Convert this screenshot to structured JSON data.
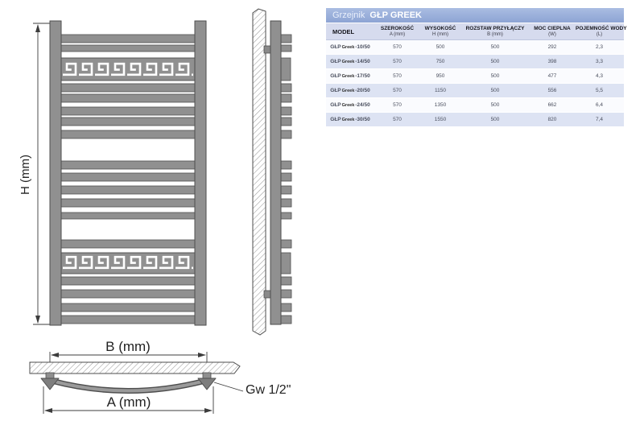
{
  "spec_table": {
    "title": {
      "prefix": "Grzejnik",
      "name": "GŁP GREEK"
    },
    "header": [
      {
        "label": "MODEL",
        "sub": ""
      },
      {
        "label": "SZEROKOŚĆ",
        "sub": "A (mm)"
      },
      {
        "label": "WYSOKOŚĆ",
        "sub": "H (mm)"
      },
      {
        "label": "ROZSTAW PRZYŁĄCZY",
        "sub": "B (mm)"
      },
      {
        "label": "MOC CIEPLNA",
        "sub": "(W)"
      },
      {
        "label": "POJEMNOŚĆ WODY",
        "sub": "(L)"
      }
    ],
    "rows": [
      {
        "model": {
          "brand": "GŁP",
          "series": "Greek",
          "size": "-10/50"
        },
        "values": [
          "570",
          "500",
          "500",
          "292",
          "2,3"
        ]
      },
      {
        "model": {
          "brand": "GŁP",
          "series": "Greek",
          "size": "-14/50"
        },
        "values": [
          "570",
          "750",
          "500",
          "398",
          "3,3"
        ]
      },
      {
        "model": {
          "brand": "GŁP",
          "series": "Greek",
          "size": "-17/50"
        },
        "values": [
          "570",
          "950",
          "500",
          "477",
          "4,3"
        ]
      },
      {
        "model": {
          "brand": "GŁP",
          "series": "Greek",
          "size": "-20/50"
        },
        "values": [
          "570",
          "1150",
          "500",
          "556",
          "5,5"
        ]
      },
      {
        "model": {
          "brand": "GŁP",
          "series": "Greek",
          "size": "-24/50"
        },
        "values": [
          "570",
          "1350",
          "500",
          "662",
          "6,4"
        ]
      },
      {
        "model": {
          "brand": "GŁP",
          "series": "Greek",
          "size": "-30/50"
        },
        "values": [
          "570",
          "1550",
          "500",
          "820",
          "7,4"
        ]
      }
    ]
  },
  "diagram": {
    "labels": {
      "height": "H (mm)",
      "pipe_spacing": "B (mm)",
      "width": "A (mm)",
      "thread": "Gw 1/2\""
    }
  },
  "colors": {
    "table_title_bg": "#96aad7",
    "table_header_bg": "#d6dbee",
    "row_stripe_bg": "#dde3f3",
    "radiator_gray": "#909090",
    "outline_gray": "#4e4e4e"
  }
}
